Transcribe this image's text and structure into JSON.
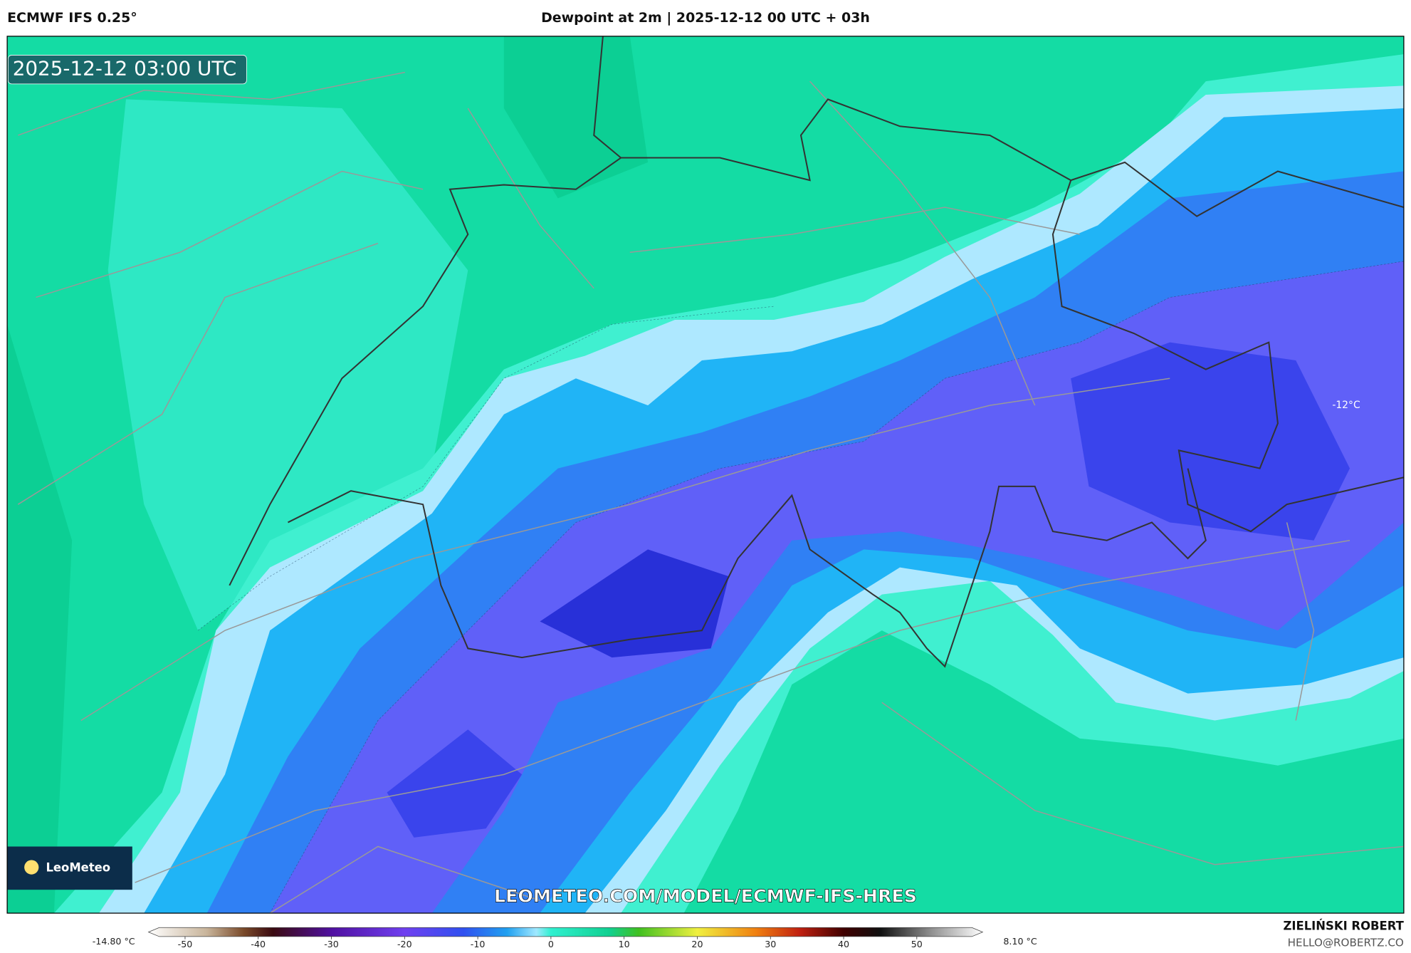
{
  "header": {
    "model": "ECMWF IFS 0.25°",
    "title": "Dewpoint at 2m | 2025-12-12 00 UTC + 03h"
  },
  "map": {
    "valid_time": "2025-12-12 03:00 UTC",
    "contour_label": "-12°C",
    "logo": "LeoMeteo",
    "url": "LEOMETEO.COM/MODEL/ECMWF-IFS-HRES"
  },
  "colorbar": {
    "min_label": "-14.80 °C",
    "max_label": "8.10 °C",
    "lim": [
      -55,
      59
    ],
    "ticks": [
      -50,
      -40,
      -30,
      -20,
      -10,
      0,
      10,
      20,
      30,
      40,
      50
    ],
    "stops": [
      {
        "value": -55,
        "color": "#ffffff"
      },
      {
        "value": -47,
        "color": "#c8b49a"
      },
      {
        "value": -42,
        "color": "#7a4a2a"
      },
      {
        "value": -38,
        "color": "#3a0a10"
      },
      {
        "value": -30,
        "color": "#5010a0"
      },
      {
        "value": -20,
        "color": "#7040f0"
      },
      {
        "value": -12,
        "color": "#3050f0"
      },
      {
        "value": -6,
        "color": "#20a0f0"
      },
      {
        "value": -2,
        "color": "#a0e8ff"
      },
      {
        "value": 0,
        "color": "#30f0d0"
      },
      {
        "value": 8,
        "color": "#10d090"
      },
      {
        "value": 12,
        "color": "#40c020"
      },
      {
        "value": 20,
        "color": "#f0f040"
      },
      {
        "value": 28,
        "color": "#f08010"
      },
      {
        "value": 34,
        "color": "#c02010"
      },
      {
        "value": 40,
        "color": "#400000"
      },
      {
        "value": 45,
        "color": "#101010"
      },
      {
        "value": 52,
        "color": "#909090"
      },
      {
        "value": 59,
        "color": "#ffffff"
      }
    ]
  },
  "footer": {
    "author": "ZIELIŃSKI ROBERT",
    "email": "HELLO@ROBERTZ.CO"
  }
}
